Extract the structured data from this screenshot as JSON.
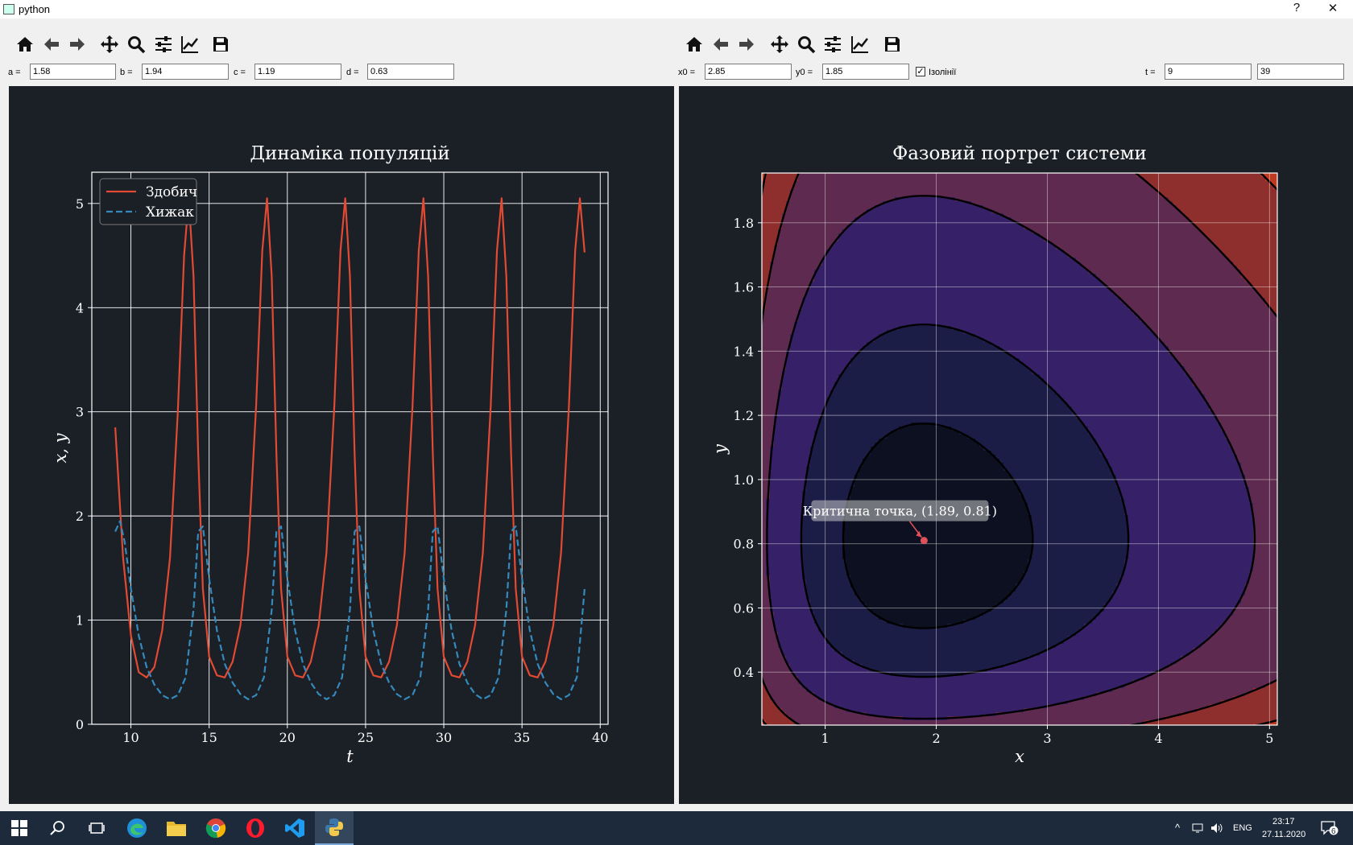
{
  "window": {
    "title": "python",
    "help_label": "?",
    "close_label": "✕"
  },
  "left_toolbar": {
    "icons": [
      "home-icon",
      "back-arrow-icon",
      "forward-arrow-icon",
      "pan-icon",
      "zoom-icon",
      "configure-subplots-icon",
      "edit-axis-icon",
      "save-icon"
    ]
  },
  "right_toolbar": {
    "icons": [
      "home-icon",
      "back-arrow-icon",
      "forward-arrow-icon",
      "pan-icon",
      "zoom-icon",
      "configure-subplots-icon",
      "edit-axis-icon",
      "save-icon"
    ]
  },
  "params": {
    "a_label": "a =",
    "a_value": "1.58",
    "b_label": "b =",
    "b_value": "1.94",
    "c_label": "c =",
    "c_value": "1.19",
    "d_label": "d =",
    "d_value": "0.63",
    "x0_label": "x0 =",
    "x0_value": "2.85",
    "y0_label": "y0 =",
    "y0_value": "1.85",
    "isolines_label": "Ізолінії",
    "isolines_checked": true,
    "t_label": "t =",
    "t_start": "9",
    "t_end": "39"
  },
  "chart_data": [
    {
      "type": "line",
      "title": "Динаміка популяцій",
      "xlabel": "t",
      "ylabel": "x, y",
      "xlim": [
        7.5,
        40.5
      ],
      "ylim": [
        0,
        5.3
      ],
      "xticks": [
        10,
        15,
        20,
        25,
        30,
        35,
        40
      ],
      "yticks": [
        0,
        1,
        2,
        3,
        4,
        5
      ],
      "grid": true,
      "legend": "top-left",
      "series": [
        {
          "name": "Здобич",
          "style": "solid",
          "color": "#e24a33",
          "x": [
            9.0,
            9.5,
            10.0,
            10.5,
            11.0,
            11.5,
            12.0,
            12.5,
            13.0,
            13.4,
            13.7,
            14.0,
            14.3,
            14.6,
            15.0,
            15.5,
            16.0,
            16.5,
            17.0,
            17.5,
            18.0,
            18.4,
            18.7,
            19.0,
            19.3,
            19.6,
            20.0,
            20.5,
            21.0,
            21.5,
            22.0,
            22.5,
            23.0,
            23.4,
            23.7,
            24.0,
            24.3,
            24.6,
            25.0,
            25.5,
            26.0,
            26.5,
            27.0,
            27.5,
            28.0,
            28.4,
            28.7,
            29.0,
            29.3,
            29.6,
            30.0,
            30.5,
            31.0,
            31.5,
            32.0,
            32.5,
            33.0,
            33.4,
            33.7,
            34.0,
            34.3,
            34.6,
            35.0,
            35.5,
            36.0,
            36.5,
            37.0,
            37.5,
            38.0,
            38.4,
            38.7,
            39.0
          ],
          "y": [
            2.85,
            1.6,
            0.85,
            0.5,
            0.45,
            0.55,
            0.9,
            1.6,
            3.0,
            4.5,
            5.05,
            4.3,
            2.6,
            1.3,
            0.65,
            0.47,
            0.45,
            0.6,
            0.95,
            1.65,
            3.05,
            4.55,
            5.05,
            4.3,
            2.6,
            1.3,
            0.65,
            0.47,
            0.45,
            0.6,
            0.95,
            1.65,
            3.05,
            4.55,
            5.05,
            4.3,
            2.6,
            1.3,
            0.65,
            0.47,
            0.45,
            0.6,
            0.95,
            1.65,
            3.05,
            4.55,
            5.05,
            4.3,
            2.6,
            1.3,
            0.65,
            0.47,
            0.45,
            0.6,
            0.95,
            1.65,
            3.05,
            4.55,
            5.05,
            4.3,
            2.6,
            1.3,
            0.65,
            0.47,
            0.45,
            0.6,
            0.95,
            1.65,
            3.05,
            4.55,
            5.05,
            4.53
          ]
        },
        {
          "name": "Хижак",
          "style": "dashed",
          "color": "#348abd",
          "x": [
            9.0,
            9.3,
            9.6,
            10.0,
            10.5,
            11.0,
            11.5,
            12.0,
            12.5,
            13.0,
            13.5,
            14.0,
            14.3,
            14.6,
            15.0,
            15.5,
            16.0,
            16.5,
            17.0,
            17.5,
            18.0,
            18.5,
            19.0,
            19.3,
            19.6,
            20.0,
            20.5,
            21.0,
            21.5,
            22.0,
            22.5,
            23.0,
            23.5,
            24.0,
            24.3,
            24.6,
            25.0,
            25.5,
            26.0,
            26.5,
            27.0,
            27.5,
            28.0,
            28.5,
            29.0,
            29.3,
            29.6,
            30.0,
            30.5,
            31.0,
            31.5,
            32.0,
            32.5,
            33.0,
            33.5,
            34.0,
            34.3,
            34.6,
            35.0,
            35.5,
            36.0,
            36.5,
            37.0,
            37.5,
            38.0,
            38.5,
            39.0
          ],
          "y": [
            1.85,
            1.95,
            1.75,
            1.3,
            0.85,
            0.55,
            0.38,
            0.28,
            0.24,
            0.28,
            0.45,
            1.1,
            1.85,
            1.9,
            1.4,
            0.9,
            0.58,
            0.4,
            0.29,
            0.24,
            0.28,
            0.45,
            1.1,
            1.85,
            1.9,
            1.4,
            0.9,
            0.58,
            0.4,
            0.29,
            0.24,
            0.28,
            0.45,
            1.1,
            1.85,
            1.9,
            1.4,
            0.9,
            0.58,
            0.4,
            0.29,
            0.24,
            0.28,
            0.45,
            1.1,
            1.85,
            1.9,
            1.4,
            0.9,
            0.58,
            0.4,
            0.29,
            0.24,
            0.28,
            0.45,
            1.1,
            1.85,
            1.9,
            1.4,
            0.9,
            0.58,
            0.4,
            0.29,
            0.24,
            0.28,
            0.45,
            1.3
          ]
        }
      ]
    },
    {
      "type": "contour",
      "title": "Фазовий портрет системи",
      "xlabel": "x",
      "ylabel": "y",
      "xlim": [
        0.43,
        5.07
      ],
      "ylim": [
        0.235,
        1.955
      ],
      "xticks": [
        1,
        2,
        3,
        4,
        5
      ],
      "yticks": [
        0.4,
        0.6,
        0.8,
        1.0,
        1.2,
        1.4,
        1.6,
        1.8
      ],
      "grid": true,
      "params": {
        "a": 1.58,
        "b": 1.94,
        "c": 1.19,
        "d": 0.63
      },
      "critical_point": {
        "x": 1.89,
        "y": 0.81,
        "label": "Критична точка, (1.89, 0.81)"
      },
      "colors": [
        "#0d1020",
        "#1b1d47",
        "#362067",
        "#5f2a4f",
        "#8f2f2d",
        "#c03a21",
        "#7a6a22",
        "#a09030"
      ]
    }
  ],
  "taskbar": {
    "language": "ENG",
    "time": "23:17",
    "date": "27.11.2020",
    "notifications": "6"
  }
}
